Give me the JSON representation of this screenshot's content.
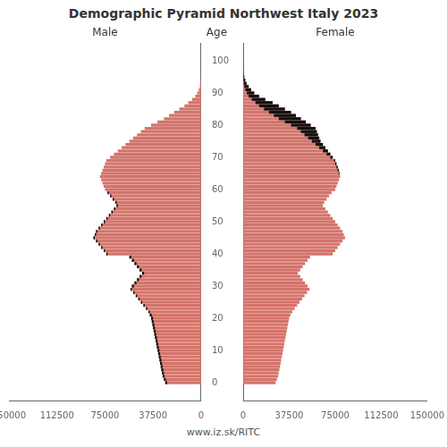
{
  "chart_data": {
    "type": "bar",
    "orientation": "horizontal",
    "title": "Demographic Pyramid Northwest Italy 2023",
    "ylabel": "Age",
    "annotations": [
      "www.iz.sk/RITC"
    ],
    "color": "#111111",
    "grid": false,
    "y": [
      0,
      1,
      2,
      3,
      4,
      5,
      6,
      7,
      8,
      9,
      10,
      11,
      12,
      13,
      14,
      15,
      16,
      17,
      18,
      19,
      20,
      21,
      22,
      23,
      24,
      25,
      26,
      27,
      28,
      29,
      30,
      31,
      32,
      33,
      34,
      35,
      36,
      37,
      38,
      39,
      40,
      41,
      42,
      43,
      44,
      45,
      46,
      47,
      48,
      49,
      50,
      51,
      52,
      53,
      54,
      55,
      56,
      57,
      58,
      59,
      60,
      61,
      62,
      63,
      64,
      65,
      66,
      67,
      68,
      69,
      70,
      71,
      72,
      73,
      74,
      75,
      76,
      77,
      78,
      79,
      80,
      81,
      82,
      83,
      84,
      85,
      86,
      87,
      88,
      89,
      90,
      91,
      92,
      93,
      94,
      95,
      96,
      97,
      98,
      99,
      100
    ],
    "xlim": [
      0,
      150000
    ],
    "xticks": [
      0,
      37500,
      75000,
      112500,
      150000
    ],
    "ylim": [
      -0.5,
      100.5
    ],
    "yticks": [
      0,
      10,
      20,
      30,
      40,
      50,
      60,
      70,
      80,
      90,
      100
    ],
    "series": [
      {
        "name": "Male",
        "color": "#D4736A",
        "values": [
          28000,
          29000,
          30000,
          30500,
          31000,
          31500,
          32000,
          32500,
          33000,
          33500,
          34000,
          34500,
          35000,
          35500,
          36000,
          36500,
          37000,
          37500,
          38000,
          38500,
          39000,
          40000,
          41000,
          43000,
          45000,
          47000,
          49000,
          51000,
          53000,
          55000,
          54000,
          52000,
          50000,
          48000,
          46000,
          48000,
          50000,
          52000,
          54000,
          56000,
          74000,
          76000,
          78000,
          80000,
          82000,
          84000,
          83000,
          82000,
          80000,
          78000,
          76000,
          74000,
          72000,
          70000,
          68000,
          66000,
          67000,
          69000,
          71000,
          73000,
          75000,
          76000,
          77000,
          78000,
          79000,
          78000,
          77000,
          76000,
          75000,
          74000,
          71000,
          68000,
          65000,
          62000,
          59000,
          56000,
          53000,
          50000,
          47000,
          44000,
          39000,
          34000,
          29000,
          25000,
          21000,
          17000,
          13000,
          10000,
          7000,
          4500,
          3000,
          1800,
          1000,
          550,
          280,
          130,
          60,
          25,
          10,
          4,
          1
        ]
      },
      {
        "name": "Female",
        "color": "#D4736A",
        "values": [
          26500,
          27500,
          28500,
          29000,
          29500,
          30000,
          30500,
          31000,
          31500,
          32000,
          32500,
          33000,
          33500,
          34000,
          34500,
          35000,
          35500,
          36000,
          36500,
          37000,
          37500,
          38500,
          40000,
          42000,
          44000,
          46000,
          48000,
          50000,
          52000,
          54000,
          52500,
          50500,
          48500,
          46500,
          44500,
          46500,
          48500,
          50500,
          52500,
          54500,
          73000,
          75000,
          77000,
          79000,
          81000,
          83000,
          82000,
          81000,
          79000,
          77000,
          75000,
          73000,
          71000,
          69000,
          67000,
          65000,
          66000,
          68000,
          70000,
          72000,
          75000,
          76000,
          77000,
          78000,
          79000,
          78500,
          78000,
          77000,
          76000,
          75000,
          73000,
          71000,
          69000,
          67000,
          65000,
          63000,
          62000,
          61000,
          60000,
          59000,
          55000,
          51000,
          47000,
          43000,
          39000,
          34000,
          29000,
          24000,
          18000,
          13000,
          9000,
          6500,
          4500,
          2800,
          1700,
          900,
          420,
          170,
          65,
          22,
          7
        ]
      }
    ]
  }
}
